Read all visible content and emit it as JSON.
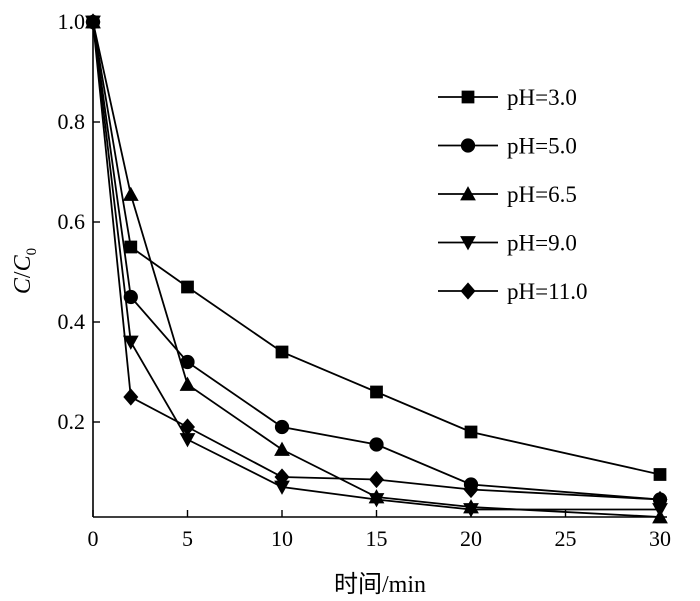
{
  "chart_data": {
    "type": "line",
    "xlabel": "时间/min",
    "ylabel_main": "C",
    "ylabel_slash": "/",
    "ylabel_sub_base": "C",
    "ylabel_subscript": "0",
    "xlim": [
      0,
      30
    ],
    "ylim": [
      0.02,
      1.0
    ],
    "x_ticks": [
      0,
      5,
      10,
      15,
      20,
      25,
      30
    ],
    "x_tick_labels": [
      "0",
      "5",
      "10",
      "15",
      "20",
      "25",
      "30"
    ],
    "y_ticks": [
      0.2,
      0.4,
      0.6,
      0.8,
      1.0
    ],
    "y_tick_labels": [
      "0.2",
      "0.4",
      "0.6",
      "0.8",
      "1.0"
    ],
    "grid": false,
    "legend_position": "top-right",
    "series": [
      {
        "name": "pH=3.0",
        "marker": "square",
        "x": [
          0,
          2,
          5,
          10,
          15,
          20,
          30
        ],
        "y": [
          1.0,
          0.55,
          0.47,
          0.34,
          0.26,
          0.18,
          0.095
        ]
      },
      {
        "name": "pH=5.0",
        "marker": "circle",
        "x": [
          0,
          2,
          5,
          10,
          15,
          20,
          30
        ],
        "y": [
          1.0,
          0.45,
          0.32,
          0.19,
          0.155,
          0.075,
          0.045
        ]
      },
      {
        "name": "pH=6.5",
        "marker": "triangle-up",
        "x": [
          0,
          2,
          5,
          10,
          15,
          20,
          30
        ],
        "y": [
          1.0,
          0.655,
          0.275,
          0.145,
          0.05,
          0.03,
          0.01
        ]
      },
      {
        "name": "pH=9.0",
        "marker": "triangle-down",
        "x": [
          0,
          2,
          5,
          10,
          15,
          20,
          30
        ],
        "y": [
          1.0,
          0.36,
          0.165,
          0.07,
          0.045,
          0.025,
          0.025
        ]
      },
      {
        "name": "pH=11.0",
        "marker": "diamond",
        "x": [
          0,
          2,
          5,
          10,
          15,
          20,
          30
        ],
        "y": [
          1.0,
          0.25,
          0.19,
          0.09,
          0.085,
          0.065,
          0.045
        ]
      }
    ]
  }
}
